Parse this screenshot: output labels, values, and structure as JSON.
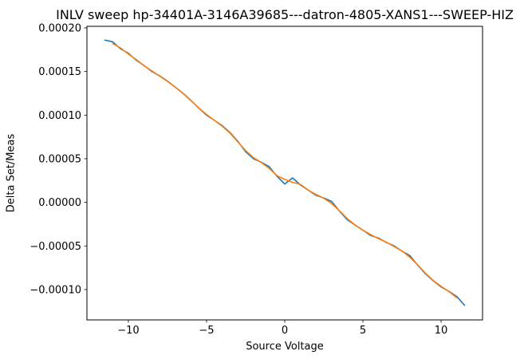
{
  "figure": {
    "background": "#ffffff",
    "text_color": "#000000"
  },
  "chart_data": {
    "type": "line",
    "title": "INLV sweep hp-34401A-3146A39685---datron-4805-XANS1---SWEEP-HIZ",
    "xlabel": "Source Voltage",
    "ylabel": "Delta Set/Meas",
    "grid": false,
    "legend": "none",
    "xlim": [
      -12.65,
      12.65
    ],
    "ylim": [
      -0.0001348,
      0.0002018
    ],
    "x_ticks": [
      -10,
      -5,
      0,
      5,
      10
    ],
    "x_tick_labels": [
      "−10",
      "−5",
      "0",
      "5",
      "10"
    ],
    "y_ticks": [
      -0.0001,
      -5e-05,
      0,
      5e-05,
      0.0001,
      0.00015,
      0.0002
    ],
    "y_tick_labels": [
      "−0.00010",
      "−0.00005",
      "0.00000",
      "0.00005",
      "0.00010",
      "0.00015",
      "0.00020"
    ],
    "series": [
      {
        "name": "series1",
        "color": "#1f77b4",
        "x": [
          -11.5,
          -11,
          -10.5,
          -10,
          -9.5,
          -9,
          -8.5,
          -8,
          -7.5,
          -7,
          -6.5,
          -6,
          -5.5,
          -5,
          -4.5,
          -4,
          -3.5,
          -3,
          -2.5,
          -2,
          -1.5,
          -1,
          -0.5,
          0,
          0.5,
          1,
          1.5,
          2,
          2.5,
          3,
          3.5,
          4,
          4.5,
          5,
          5.5,
          6,
          6.5,
          7,
          7.5,
          8,
          8.5,
          9,
          9.5,
          10,
          10.5,
          11,
          11.5
        ],
        "y": [
          0.000186,
          0.000184,
          0.000176,
          0.000171,
          0.000163,
          0.000157,
          0.00015,
          0.000145,
          0.000139,
          0.000132,
          0.000125,
          0.000117,
          0.000108,
          0.0001,
          9.4e-05,
          8.8e-05,
          8e-05,
          7e-05,
          5.8e-05,
          5e-05,
          4.6e-05,
          4.1e-05,
          3e-05,
          2.1e-05,
          2.8e-05,
          2e-05,
          1.4e-05,
          8e-06,
          5e-06,
          1e-06,
          -1e-05,
          -2e-05,
          -2.6e-05,
          -3.2e-05,
          -3.8e-05,
          -4.1e-05,
          -4.6e-05,
          -5e-05,
          -5.6e-05,
          -6.1e-05,
          -7.2e-05,
          -8.2e-05,
          -9e-05,
          -9.7e-05,
          -0.000102,
          -0.000108,
          -0.000118
        ]
      },
      {
        "name": "series2",
        "color": "#ff7f0e",
        "x": [
          -11,
          -10.5,
          -10,
          -9.5,
          -9,
          -8.5,
          -8,
          -7.5,
          -7,
          -6.5,
          -6,
          -5.5,
          -5,
          -4.5,
          -4,
          -3.5,
          -3,
          -2.5,
          -2,
          -1.5,
          -1,
          -0.5,
          0,
          0.5,
          1,
          1.5,
          2,
          2.5,
          3,
          3.5,
          4,
          4.5,
          5,
          5.5,
          6,
          6.5,
          7,
          7.5,
          8,
          8.5,
          9,
          9.5,
          10,
          10.5,
          11
        ],
        "y": [
          0.000182,
          0.000177,
          0.00017,
          0.0001637,
          0.0001567,
          0.0001507,
          0.0001447,
          0.0001387,
          0.000132,
          0.0001247,
          0.0001167,
          0.0001083,
          0.0001007,
          9.4e-05,
          8.73e-05,
          7.93e-05,
          6.93e-05,
          5.93e-05,
          5.13e-05,
          4.57e-05,
          3.9e-05,
          3.07e-05,
          2.63e-05,
          2.3e-05,
          2.07e-05,
          1.4e-05,
          9e-06,
          4.7e-06,
          -1.3e-06,
          -9.7e-06,
          -1.87e-05,
          -2.6e-05,
          -3.2e-05,
          -3.7e-05,
          -4.17e-05,
          -4.57e-05,
          -5.07e-05,
          -5.57e-05,
          -6.3e-05,
          -7.17e-05,
          -8.13e-05,
          -8.97e-05,
          -9.63e-05,
          -0.0001023,
          -0.0001093
        ]
      }
    ]
  }
}
